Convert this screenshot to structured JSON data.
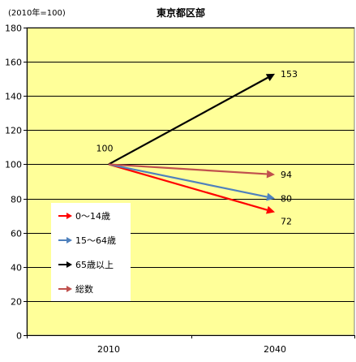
{
  "chart_data": {
    "type": "line",
    "title": "東京都区部",
    "subtitle": "(2010年=100)",
    "categories": [
      "2010",
      "2040"
    ],
    "series": [
      {
        "name": "0～14歳",
        "values": [
          100,
          72
        ],
        "color": "#ff0000"
      },
      {
        "name": "15～64歳",
        "values": [
          100,
          80
        ],
        "color": "#4f81bd"
      },
      {
        "name": "65歳以上",
        "values": [
          100,
          153
        ],
        "color": "#000000"
      },
      {
        "name": "総数",
        "values": [
          100,
          94
        ],
        "color": "#c0504d"
      }
    ],
    "start_label": "100",
    "end_labels": [
      "72",
      "80",
      "153",
      "94"
    ],
    "ylim": [
      0,
      180
    ],
    "yticks": [
      "0",
      "20",
      "40",
      "60",
      "80",
      "100",
      "120",
      "140",
      "160",
      "180"
    ],
    "grid": true,
    "legend_position": "left-middle",
    "plot_background": "#ffff99",
    "line_style": "arrow"
  }
}
